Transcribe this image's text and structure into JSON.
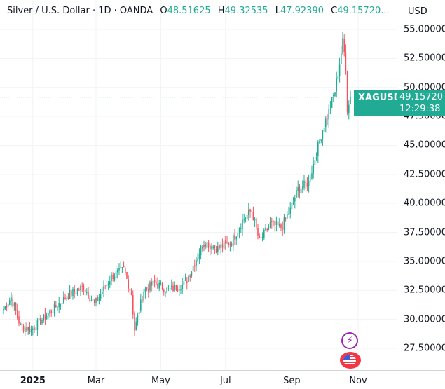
{
  "legend": {
    "title": "Silver / U.S. Dollar · 1D · OANDA",
    "open_label": "O",
    "open": "48.51625",
    "high_label": "H",
    "high": "49.32535",
    "low_label": "L",
    "low": "47.92390",
    "close_label": "C",
    "close": "49.15720..."
  },
  "currency": "USD",
  "price_tag": {
    "symbol": "XAGUSD",
    "price": "49.15720",
    "countdown": "12:29:38"
  },
  "colors": {
    "up": "#22ab94",
    "down": "#f7525f",
    "tag": "#22ab94",
    "event": "#9c27b0",
    "flag": "#f23645"
  },
  "chart_data": {
    "type": "candlestick",
    "title": "Silver / U.S. Dollar · 1D · OANDA",
    "ylim": [
      26.5,
      56.6
    ],
    "y_ticks": [
      "55.00000",
      "52.50000",
      "50.00000",
      "47.50000",
      "45.00000",
      "42.50000",
      "40.00000",
      "37.50000",
      "35.00000",
      "32.50000",
      "30.00000",
      "27.50000"
    ],
    "x_ticks": [
      {
        "label": "2025",
        "day": 19
      },
      {
        "label": "Mar",
        "day": 60
      },
      {
        "label": "May",
        "day": 102
      },
      {
        "label": "Jul",
        "day": 144
      },
      {
        "label": "Sep",
        "day": 187
      },
      {
        "label": "Nov",
        "day": 230
      }
    ],
    "close_anchors": [
      [
        0,
        30.9
      ],
      [
        5,
        31.9
      ],
      [
        11,
        29.4
      ],
      [
        18,
        29.1
      ],
      [
        30,
        30.6
      ],
      [
        43,
        32.2
      ],
      [
        52,
        32.8
      ],
      [
        59,
        31.3
      ],
      [
        70,
        33.7
      ],
      [
        78,
        34.3
      ],
      [
        83,
        32.2
      ],
      [
        85,
        29.1
      ],
      [
        91,
        32.5
      ],
      [
        98,
        33.1
      ],
      [
        107,
        32.5
      ],
      [
        118,
        33.1
      ],
      [
        123,
        34.6
      ],
      [
        130,
        36.7
      ],
      [
        139,
        36.1
      ],
      [
        148,
        36.7
      ],
      [
        155,
        38.5
      ],
      [
        161,
        39.4
      ],
      [
        166,
        36.7
      ],
      [
        173,
        38.2
      ],
      [
        180,
        37.9
      ],
      [
        186,
        39.4
      ],
      [
        191,
        41.2
      ],
      [
        198,
        41.8
      ],
      [
        202,
        43.9
      ],
      [
        207,
        46.4
      ],
      [
        211,
        47.9
      ],
      [
        215,
        49.7
      ],
      [
        218,
        52.1
      ],
      [
        220,
        53.9
      ],
      [
        221,
        53.0
      ],
      [
        222,
        51.8
      ],
      [
        223,
        48.2
      ],
      [
        224,
        48.5
      ],
      [
        225,
        49.157
      ]
    ],
    "last_price": 49.1572
  }
}
